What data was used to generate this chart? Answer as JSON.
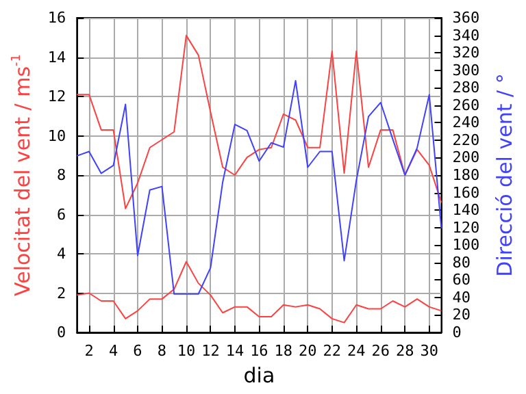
{
  "chart_data": {
    "type": "line",
    "xlabel": "dia",
    "ylabel": "Velocitat del vent / ms$^{-1}$",
    "y2label": "Direcció del vent / °",
    "x": [
      1,
      2,
      3,
      4,
      5,
      6,
      7,
      8,
      9,
      10,
      11,
      12,
      13,
      14,
      15,
      16,
      17,
      18,
      19,
      20,
      21,
      22,
      23,
      24,
      25,
      26,
      27,
      28,
      29,
      30,
      31
    ],
    "series": [
      {
        "color": "#ff4040",
        "values": [
          12.1,
          12.1,
          10.3,
          10.3,
          6.3,
          7.6,
          9.4,
          9.8,
          10.2,
          15.1,
          14.1,
          11.2,
          8.4,
          8.0,
          8.9,
          9.3,
          9.4,
          11.1,
          10.8,
          9.4,
          9.4,
          14.3,
          8.1,
          14.3,
          8.4,
          10.3,
          10.3,
          8.0,
          9.3,
          8.5,
          6.6
        ]
      },
      {
        "color": "#ff4040",
        "values": [
          1.9,
          2.0,
          1.6,
          1.6,
          0.7,
          1.1,
          1.7,
          1.7,
          2.2,
          3.6,
          2.5,
          1.9,
          1.0,
          1.3,
          1.3,
          0.8,
          0.8,
          1.4,
          1.3,
          1.4,
          1.2,
          0.7,
          0.5,
          1.4,
          1.2,
          1.2,
          1.6,
          1.3,
          1.7,
          1.3,
          1.1
        ]
      },
      {
        "color": "#4040ff",
        "axis": "y2",
        "values": [
          202,
          207,
          182,
          191,
          261,
          88,
          163,
          167,
          44,
          44,
          44,
          74,
          172,
          238,
          231,
          196,
          217,
          212,
          288,
          189,
          207,
          207,
          82,
          174,
          247,
          263,
          221,
          180,
          211,
          272,
          119
        ]
      }
    ],
    "xlim": [
      1,
      31
    ],
    "xticks": [
      2,
      4,
      6,
      8,
      10,
      12,
      14,
      16,
      18,
      20,
      22,
      24,
      26,
      28,
      30
    ],
    "ylim": [
      0,
      16
    ],
    "yticks": [
      0,
      2,
      4,
      6,
      8,
      10,
      12,
      14,
      16
    ],
    "y2lim": [
      0,
      360
    ],
    "y2ticks": [
      0,
      20,
      40,
      60,
      80,
      100,
      120,
      140,
      160,
      180,
      200,
      220,
      240,
      260,
      280,
      300,
      320,
      340,
      360
    ],
    "grid": true,
    "marker": "none",
    "line_style": "solid"
  }
}
